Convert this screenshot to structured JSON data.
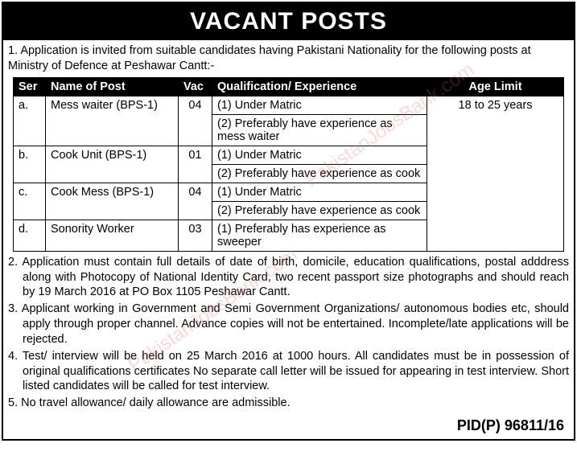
{
  "heading": "VACANT POSTS",
  "intro": "1. Application is invited from suitable candidates having Pakistani Nationality for the following posts at Ministry of Defence at Peshawar Cantt:-",
  "table": {
    "headers": {
      "ser": "Ser",
      "post": "Name of Post",
      "vac": "Vac",
      "qual": "Qualification/ Experience",
      "age": "Age Limit"
    },
    "age_limit": "18 to 25 years",
    "rows": [
      {
        "ser": "a.",
        "post": "Mess waiter (BPS-1)",
        "vac": "04",
        "q1": "(1)  Under Matric",
        "q2": "(2)  Preferably have experience as mess waiter"
      },
      {
        "ser": "b.",
        "post": "Cook Unit (BPS-1)",
        "vac": "01",
        "q1": "(1)  Under Matric",
        "q2": "(2)  Preferably have experience as cook"
      },
      {
        "ser": "c.",
        "post": "Cook Mess (BPS-1)",
        "vac": "04",
        "q1": "(1)  Under Matric",
        "q2": "(2)  Preferably have experience as cook"
      },
      {
        "ser": "d.",
        "post": "Sonority Worker",
        "vac": "03",
        "q1": "(1)  Preferably has experience as sweeper",
        "q2": null
      }
    ]
  },
  "notes": {
    "n2": "2. Application must contain full details of date of birth, domicile, education qualifications, postal adddress along with Photocopy of National Identity Card, two recent passport size photographs and should reach by 19 March 2016 at PO Box 1105 Peshawar Cantt.",
    "n3": "3. Applicant working in Government and Semi Government Organizations/ autonomous bodies etc, should apply through proper channel. Advance copies will not be entertained. Incomplete/late applications will be rejected.",
    "n4": "4. Test/ interview will be held on 25 March 2016 at 1000 hours. All candidates must be in possession of original qualifications certificates No separate call letter will be issued for appearing in test interview. Short listed candidates will be called for test interview.",
    "n5": "5. No travel allowance/ daily allowance are admissible."
  },
  "pid": "PID(P) 96811/16",
  "watermark": "PakistanJobsBank.com"
}
